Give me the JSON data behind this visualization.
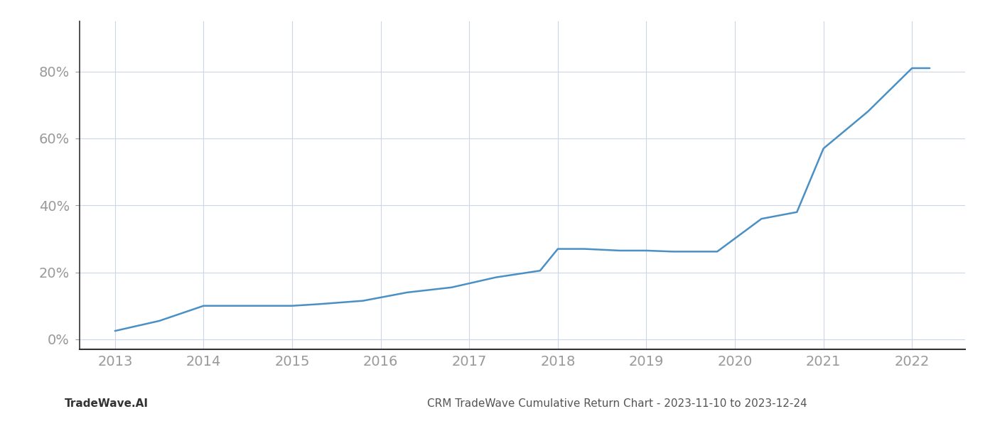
{
  "x_values": [
    2013.0,
    2013.5,
    2014.0,
    2014.5,
    2015.0,
    2015.3,
    2015.8,
    2016.3,
    2016.8,
    2017.3,
    2017.8,
    2018.0,
    2018.3,
    2018.7,
    2019.0,
    2019.3,
    2019.8,
    2020.3,
    2020.7,
    2021.0,
    2021.5,
    2022.0,
    2022.2
  ],
  "y_values": [
    0.025,
    0.055,
    0.1,
    0.1,
    0.1,
    0.105,
    0.115,
    0.14,
    0.155,
    0.185,
    0.205,
    0.27,
    0.27,
    0.265,
    0.265,
    0.262,
    0.262,
    0.36,
    0.38,
    0.57,
    0.68,
    0.81,
    0.81
  ],
  "line_color": "#4a90c4",
  "line_width": 1.8,
  "background_color": "#ffffff",
  "grid_color": "#ccd6e8",
  "spine_color": "#333333",
  "tick_label_color": "#999999",
  "title": "CRM TradeWave Cumulative Return Chart - 2023-11-10 to 2023-12-24",
  "watermark": "TradeWave.AI",
  "x_ticks": [
    2013,
    2014,
    2015,
    2016,
    2017,
    2018,
    2019,
    2020,
    2021,
    2022
  ],
  "y_ticks": [
    0.0,
    0.2,
    0.4,
    0.6,
    0.8
  ],
  "y_tick_labels": [
    "0%",
    "20%",
    "40%",
    "60%",
    "80%"
  ],
  "xlim": [
    2012.6,
    2022.6
  ],
  "ylim": [
    -0.03,
    0.95
  ]
}
